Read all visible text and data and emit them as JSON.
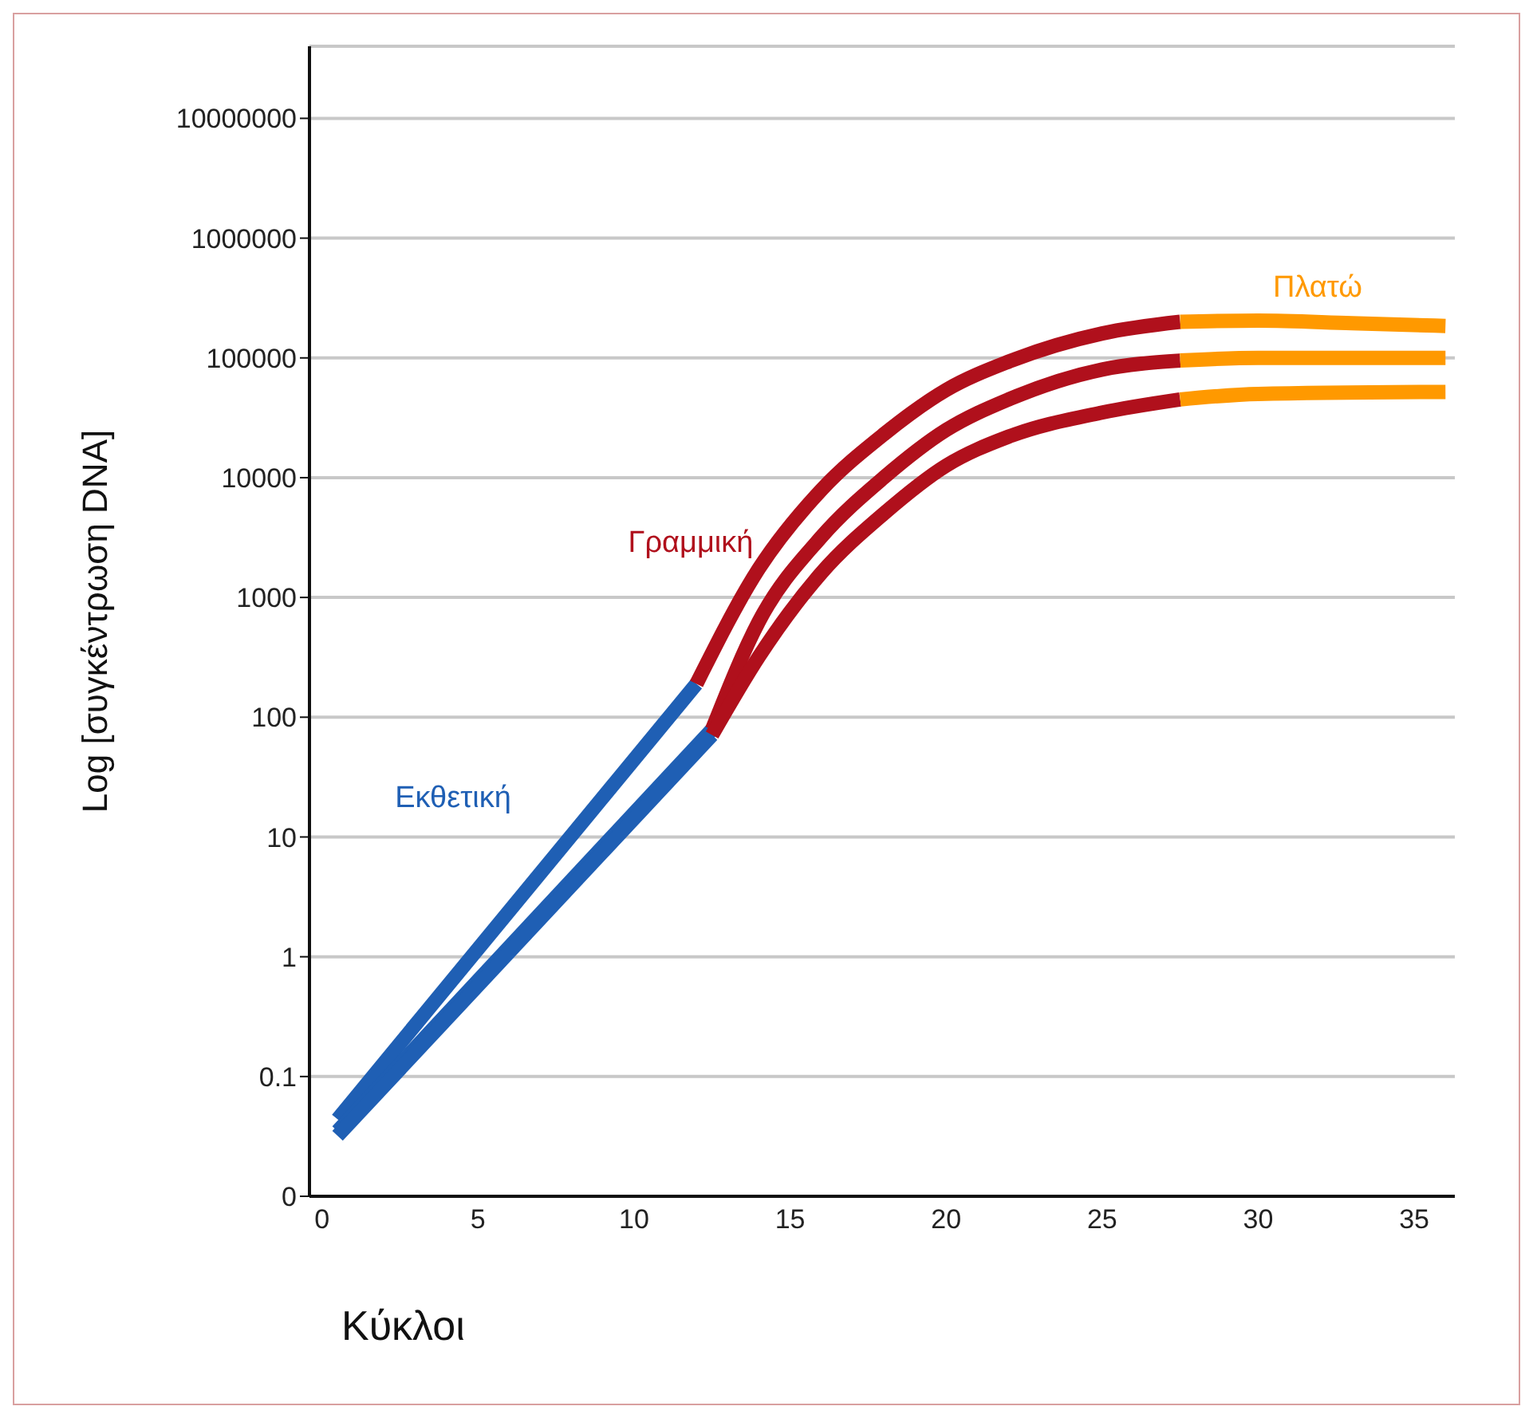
{
  "chart_data": {
    "type": "line",
    "xlabel": "Κύκλοι",
    "ylabel": "Log [συγκέντρωση DNA]",
    "log": "y",
    "grid": "y",
    "marker": "none",
    "line_style": "solid",
    "xlim": [
      -0.4,
      36.3
    ],
    "xticks": [
      0,
      5,
      10,
      15,
      20,
      25,
      30,
      35
    ],
    "ylim": [
      0.01,
      40000000
    ],
    "yticks": [
      {
        "value": 0.01,
        "label": "0"
      },
      0.1,
      1,
      10,
      100,
      1000,
      10000,
      100000,
      1000000,
      10000000
    ],
    "annotations": [
      "Εκθετική",
      "Γραμμική",
      "Πλατώ"
    ],
    "series": [
      {
        "color": "#1f5fb4",
        "x": [
          0.5,
          12
        ],
        "values": [
          0.044,
          190
        ]
      },
      {
        "color": "#1f5fb4",
        "x": [
          0.5,
          12.5
        ],
        "values": [
          0.035,
          79
        ]
      },
      {
        "color": "#1f5fb4",
        "x": [
          0.5,
          12.5
        ],
        "values": [
          0.032,
          71
        ]
      },
      {
        "color": "#b0101c",
        "x": [
          12,
          14,
          16,
          18,
          20,
          22,
          25,
          27.5
        ],
        "values": [
          190,
          1740,
          7900,
          23000,
          54000,
          93000,
          160000,
          200000
        ]
      },
      {
        "color": "#b0101c",
        "x": [
          12.5,
          14,
          16,
          18,
          20,
          22,
          25,
          27.5
        ],
        "values": [
          79,
          630,
          3200,
          10000,
          25000,
          45000,
          80000,
          95000
        ]
      },
      {
        "color": "#b0101c",
        "x": [
          12.5,
          14,
          16,
          18,
          20,
          22,
          25,
          27.5
        ],
        "values": [
          71,
          320,
          1600,
          5000,
          12600,
          22000,
          35000,
          45000
        ]
      },
      {
        "color": "#ff9900",
        "x": [
          27.5,
          30,
          33,
          36
        ],
        "values": [
          200000,
          205000,
          195000,
          185000
        ]
      },
      {
        "color": "#ff9900",
        "x": [
          27.5,
          30,
          36
        ],
        "values": [
          95000,
          100000,
          100000
        ]
      },
      {
        "color": "#ff9900",
        "x": [
          27.5,
          30,
          36
        ],
        "values": [
          45000,
          50000,
          52000
        ]
      }
    ]
  }
}
